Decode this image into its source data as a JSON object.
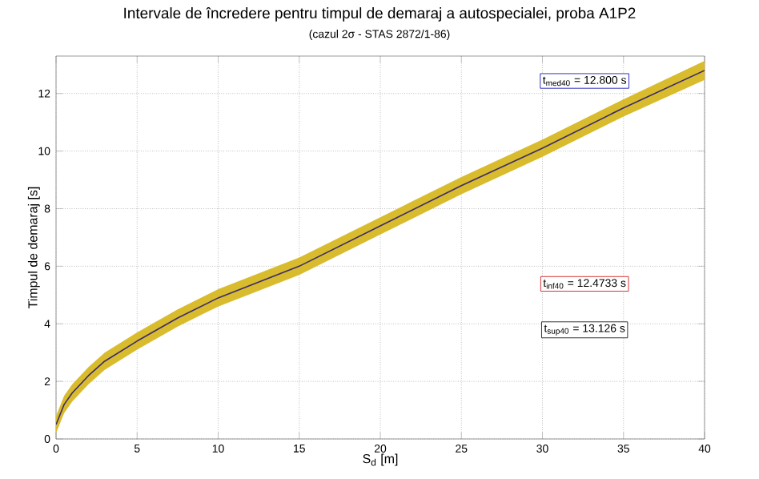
{
  "chart_data": {
    "type": "line",
    "title": "Intervale de încredere pentru timpul de demaraj a autospecialei, proba A1P2",
    "subtitle": "(cazul 2σ - STAS 2872/1-86)",
    "xlabel": "S$_{d}$ [m]",
    "ylabel": "Timpul de demaraj [s]",
    "annotations": [
      "t$_{med40}$ = 12.800 s",
      "t$_{inf40}$ = 12.4733 s",
      "t$_{sup40}$ = 13.126 s"
    ],
    "xlim": [
      0,
      40
    ],
    "ylim": [
      0,
      13.3
    ],
    "xticks": [
      0,
      5,
      10,
      15,
      20,
      25,
      30,
      35,
      40
    ],
    "yticks": [
      0,
      2,
      4,
      6,
      8,
      10,
      12
    ],
    "grid": true,
    "series": [
      {
        "color": "#3b2a6b",
        "x": [
          0,
          0.5,
          1,
          2,
          3,
          5,
          7.5,
          10,
          15,
          20,
          25,
          30,
          35,
          40
        ],
        "values": [
          0.5,
          1.2,
          1.6,
          2.2,
          2.7,
          3.4,
          4.2,
          4.9,
          6.0,
          7.4,
          8.8,
          10.1,
          11.5,
          12.8
        ],
        "lower": [
          0.2,
          0.9,
          1.3,
          1.9,
          2.4,
          3.1,
          3.9,
          4.6,
          5.7,
          7.1,
          8.5,
          9.8,
          11.2,
          12.47
        ],
        "upper": [
          0.8,
          1.5,
          1.9,
          2.5,
          3.0,
          3.7,
          4.5,
          5.2,
          6.3,
          7.7,
          9.1,
          10.4,
          11.8,
          13.13
        ]
      }
    ]
  }
}
